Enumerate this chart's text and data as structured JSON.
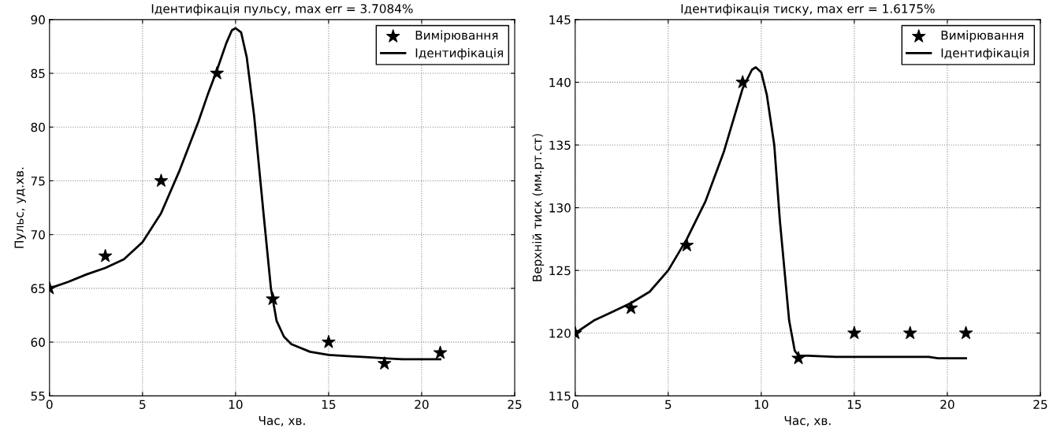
{
  "chart_data": [
    {
      "type": "line",
      "title": "Ідентифікація пульсу, max err = 3.7084%",
      "xlabel": "Час, хв.",
      "ylabel": "Пульс, уд.хв.",
      "xlim": [
        0,
        25
      ],
      "xticks": [
        0,
        5,
        10,
        15,
        20,
        25
      ],
      "ylim": [
        55,
        90
      ],
      "yticks": [
        55,
        60,
        65,
        70,
        75,
        80,
        85,
        90
      ],
      "grid": true,
      "legend": "top right",
      "series": [
        {
          "name": "Вимірювання",
          "type": "scatter",
          "marker": "star",
          "color": "#000000",
          "x": [
            0,
            3,
            6,
            9,
            12,
            15,
            18,
            21
          ],
          "values": [
            65,
            68,
            75,
            85,
            64,
            60,
            58,
            59
          ]
        },
        {
          "name": "Ідентифікація",
          "marker": "none",
          "line_style": "solid",
          "color": "#000000",
          "x": [
            0,
            1,
            2,
            3,
            4,
            5,
            6,
            7,
            8,
            8.5,
            9,
            9.5,
            9.8,
            10,
            10.3,
            10.6,
            11,
            11.5,
            11.9,
            12,
            12.2,
            12.6,
            13,
            14,
            15,
            16,
            17,
            18,
            19,
            21
          ],
          "values": [
            65,
            65.6,
            66.3,
            66.9,
            67.7,
            69.3,
            72,
            76,
            80.5,
            83,
            85.3,
            87.8,
            89,
            89.2,
            88.8,
            86.5,
            81,
            72,
            65,
            64,
            62,
            60.5,
            59.8,
            59.1,
            58.8,
            58.7,
            58.6,
            58.5,
            58.4,
            58.4
          ]
        }
      ]
    },
    {
      "type": "line",
      "title": "Ідентифікація тиску, max err = 1.6175%",
      "xlabel": "Час, хв.",
      "ylabel": "Верхній тиск (мм.рт.ст)",
      "xlim": [
        0,
        25
      ],
      "xticks": [
        0,
        5,
        10,
        15,
        20,
        25
      ],
      "ylim": [
        115,
        145
      ],
      "yticks": [
        115,
        120,
        125,
        130,
        135,
        140,
        145
      ],
      "grid": true,
      "legend": "top right",
      "series": [
        {
          "name": "Вимірювання",
          "type": "scatter",
          "marker": "star",
          "color": "#000000",
          "x": [
            0,
            3,
            6,
            9,
            12,
            15,
            18,
            21
          ],
          "values": [
            120,
            122,
            127,
            140,
            118,
            120,
            120,
            120
          ]
        },
        {
          "name": "Ідентифікація",
          "marker": "none",
          "line_style": "solid",
          "color": "#000000",
          "x": [
            0,
            1,
            2,
            3,
            4,
            5,
            6,
            7,
            8,
            9,
            9.5,
            9.7,
            10,
            10.3,
            10.7,
            11,
            11.5,
            11.8,
            12,
            12.5,
            14,
            19,
            19.5,
            21
          ],
          "values": [
            120,
            121,
            121.7,
            122.4,
            123.3,
            125,
            127.5,
            130.5,
            134.5,
            139.5,
            141,
            141.2,
            140.8,
            139,
            135,
            129,
            121,
            118.6,
            118.2,
            118.2,
            118.1,
            118.1,
            118,
            118
          ]
        }
      ]
    }
  ]
}
